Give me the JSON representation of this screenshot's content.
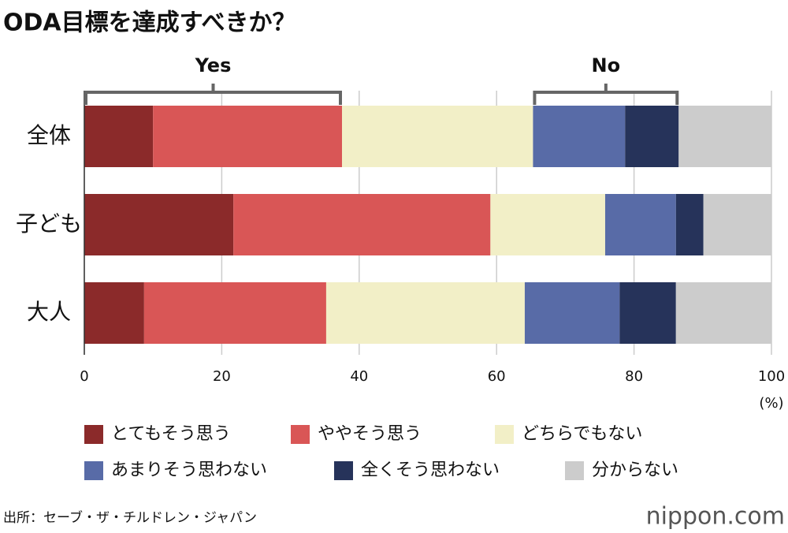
{
  "chart_data": {
    "type": "stacked-bar-horizontal",
    "title": "ODA目標を達成すべきか？",
    "categories": [
      "全体",
      "子ども",
      "大人"
    ],
    "series": [
      {
        "name": "とてもそう思う",
        "color": "#8b2a2a",
        "values": [
          10.0,
          21.7,
          8.7
        ]
      },
      {
        "name": "ややそう思う",
        "color": "#d95656",
        "values": [
          27.5,
          37.4,
          26.5
        ]
      },
      {
        "name": "どちらでもない",
        "color": "#f2efc7",
        "values": [
          27.8,
          16.7,
          28.9
        ]
      },
      {
        "name": "あまりそう思わない",
        "color": "#586ba7",
        "values": [
          13.4,
          10.3,
          13.8
        ]
      },
      {
        "name": "全くそう思わない",
        "color": "#26335a",
        "values": [
          7.8,
          4.0,
          8.2
        ]
      },
      {
        "name": "分からない",
        "color": "#cccccc",
        "values": [
          13.5,
          9.9,
          13.9
        ]
      }
    ],
    "xlim": [
      0,
      100
    ],
    "xticks": [
      0,
      20,
      40,
      60,
      80,
      100
    ],
    "xlabel": "(%)",
    "grid": true,
    "annotations": [
      "Yes",
      "No"
    ],
    "source": "出所：セーブ・ザ・チルドレン・ジャパン",
    "logo": "nippon.com"
  }
}
